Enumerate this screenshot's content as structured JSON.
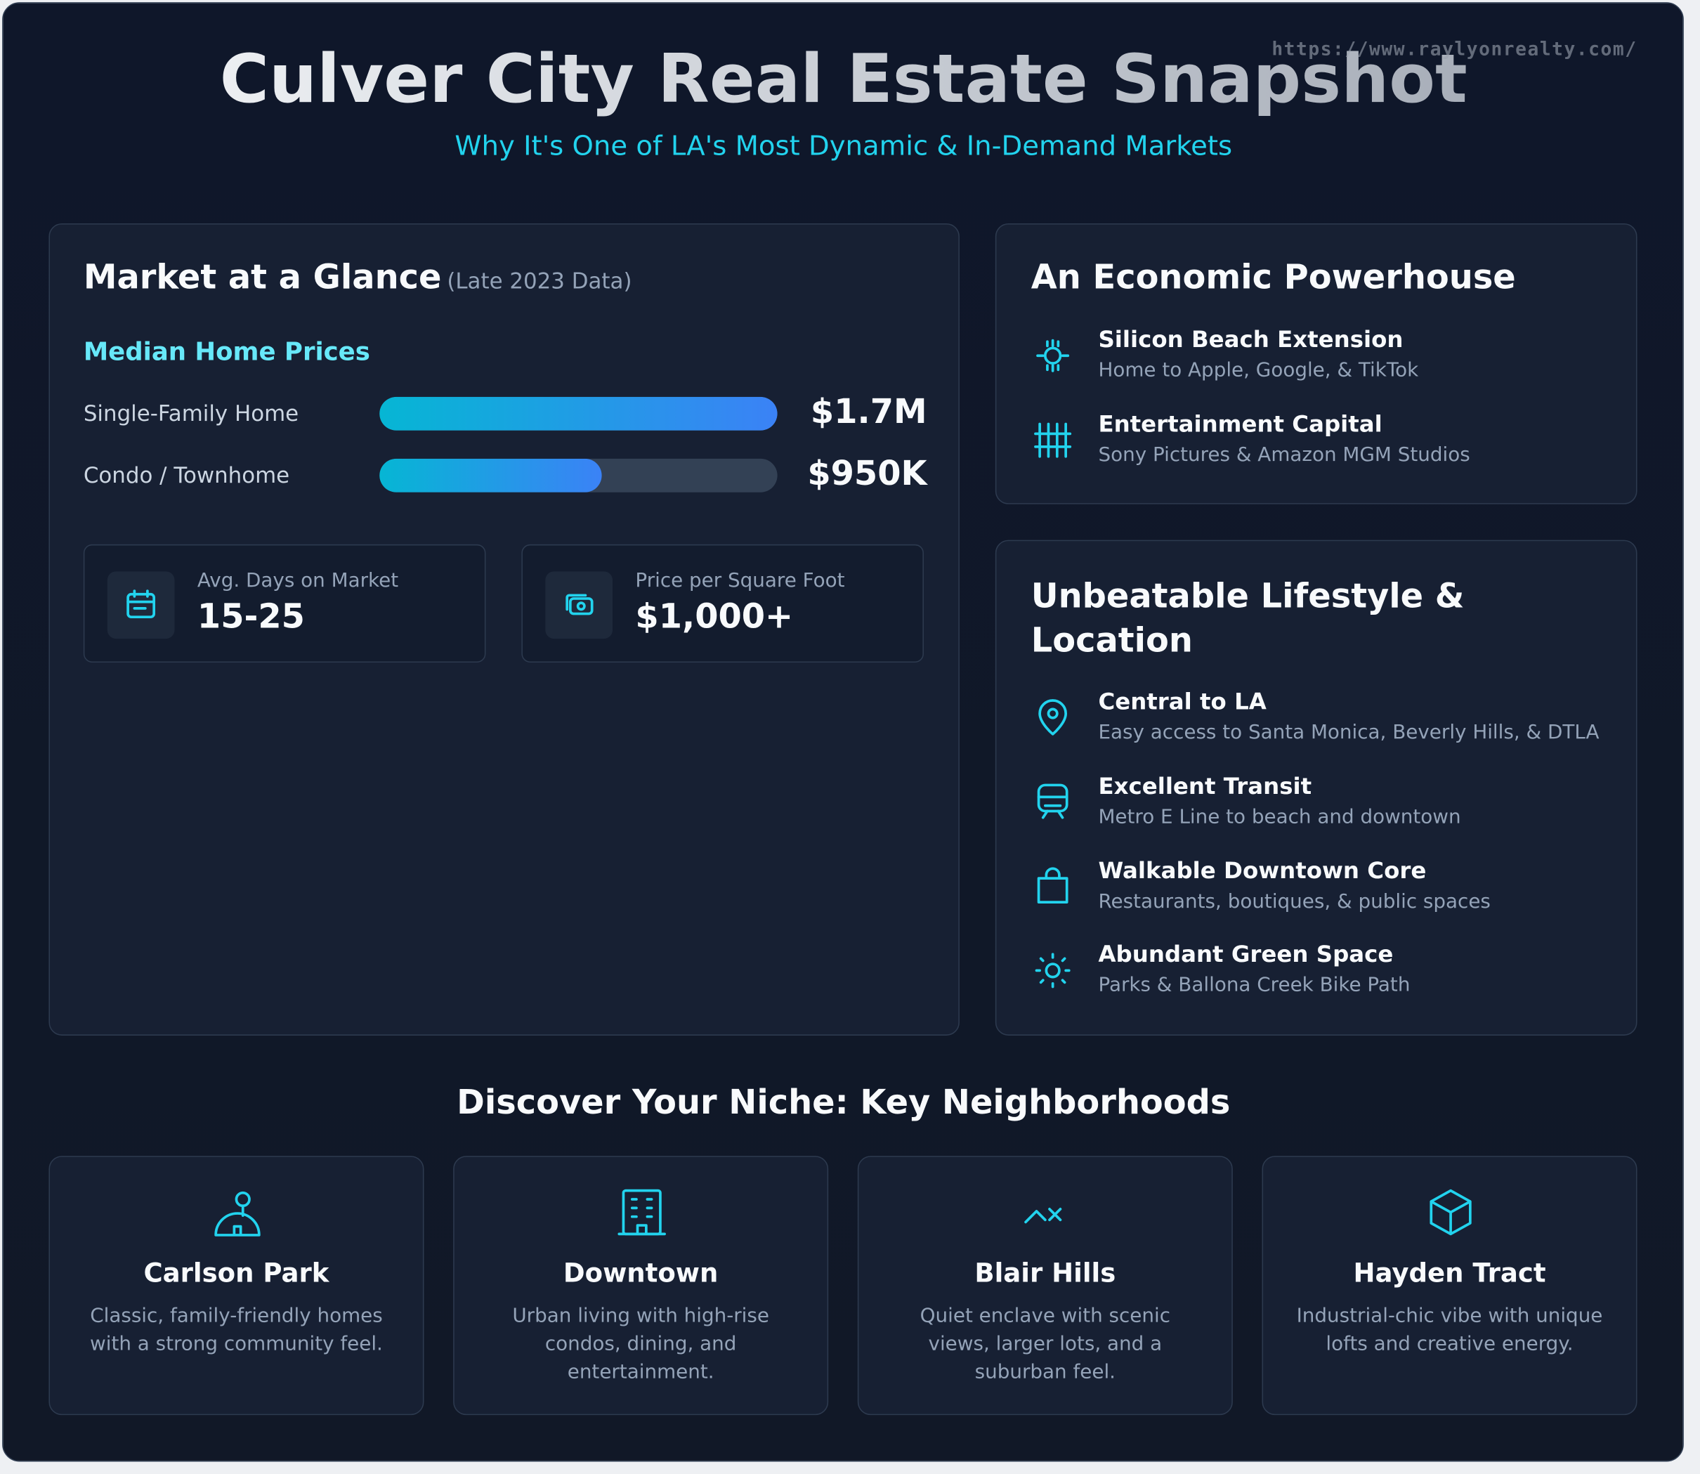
{
  "header": {
    "title": "Culver City Real Estate Snapshot",
    "subtitle": "Why It's One of LA's Most Dynamic & In-Demand Markets",
    "url": "https://www.raylyonrealty.com/"
  },
  "market": {
    "title": "Market at a Glance",
    "note": "(Late 2023 Data)",
    "prices": {
      "title": "Median Home Prices",
      "categories": [
        "Single-Family Home",
        "Condo / Townhome"
      ],
      "values": [
        1700000,
        950000
      ],
      "value_labels": [
        "$1.7M",
        "$950K"
      ],
      "xlim": [
        0,
        1700000
      ]
    },
    "stats": [
      {
        "label": "Avg. Days on Market",
        "value": "15-25"
      },
      {
        "label": "Price per Square Foot",
        "value": "$1,000+"
      }
    ]
  },
  "economy": {
    "title": "An Economic Powerhouse",
    "items": [
      {
        "title": "Silicon Beach Extension",
        "text": "Home to Apple, Google, & TikTok"
      },
      {
        "title": "Entertainment Capital",
        "text": "Sony Pictures & Amazon MGM Studios"
      }
    ]
  },
  "lifestyle": {
    "title": "Unbeatable Lifestyle & Location",
    "items": [
      {
        "title": "Central to LA",
        "text": "Easy access to Santa Monica, Beverly Hills, & DTLA"
      },
      {
        "title": "Excellent Transit",
        "text": "Metro E Line to beach and downtown"
      },
      {
        "title": "Walkable Downtown Core",
        "text": "Restaurants, boutiques, & public spaces"
      },
      {
        "title": "Abundant Green Space",
        "text": "Parks & Ballona Creek Bike Path"
      }
    ]
  },
  "neighborhoods": {
    "title": "Discover Your Niche: Key Neighborhoods",
    "items": [
      {
        "name": "Carlson Park",
        "text": "Classic, family-friendly homes with a strong community feel."
      },
      {
        "name": "Downtown",
        "text": "Urban living with high-rise condos, dining, and entertainment."
      },
      {
        "name": "Blair Hills",
        "text": "Quiet enclave with scenic views, larger lots, and a suburban feel."
      },
      {
        "name": "Hayden Tract",
        "text": "Industrial-chic vibe with unique lofts and creative energy."
      }
    ]
  }
}
